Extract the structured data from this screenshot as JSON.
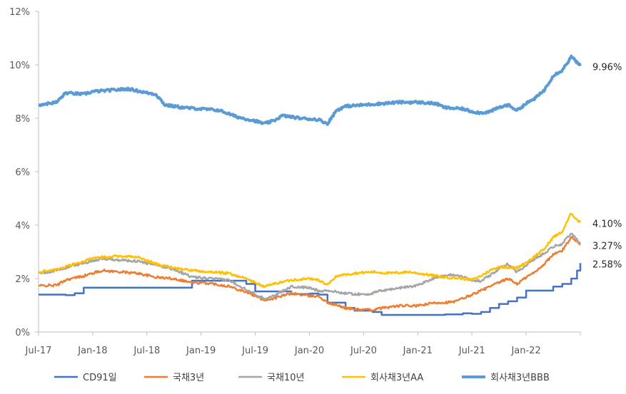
{
  "chart_data": {
    "type": "line",
    "title": "",
    "xlabel": "",
    "ylabel": "",
    "ylim": [
      0,
      12
    ],
    "y_ticks": [
      "0%",
      "2%",
      "4%",
      "6%",
      "8%",
      "10%",
      "12%"
    ],
    "x_ticks": [
      "Jul-17",
      "Jan-18",
      "Jul-18",
      "Jan-19",
      "Jul-19",
      "Jan-20",
      "Jul-20",
      "Jan-21",
      "Jul-21",
      "Jan-22"
    ],
    "x_range": [
      "2017-07",
      "2022-07"
    ],
    "grid": false,
    "legend_position": "bottom",
    "end_labels": [
      {
        "series": "회사채3년BBB",
        "text": "9.96%"
      },
      {
        "series": "회사채3년AA",
        "text": "4.10%"
      },
      {
        "series": "국채3년",
        "text": "3.27%"
      },
      {
        "series": "CD91일",
        "text": "2.58%"
      }
    ],
    "series": [
      {
        "name": "CD91일",
        "color": "#4472C4",
        "width": 2.5,
        "step": true,
        "points": [
          [
            "2017-07",
            1.4
          ],
          [
            "2017-10",
            1.38
          ],
          [
            "2017-11",
            1.45
          ],
          [
            "2017-12",
            1.66
          ],
          [
            "2018-11",
            1.66
          ],
          [
            "2018-12",
            1.92
          ],
          [
            "2019-06",
            1.8
          ],
          [
            "2019-07",
            1.52
          ],
          [
            "2019-10",
            1.52
          ],
          [
            "2019-11",
            1.42
          ],
          [
            "2020-01",
            1.44
          ],
          [
            "2020-02",
            1.4
          ],
          [
            "2020-03",
            1.1
          ],
          [
            "2020-04",
            1.1
          ],
          [
            "2020-05",
            0.9
          ],
          [
            "2020-06",
            0.8
          ],
          [
            "2020-08",
            0.75
          ],
          [
            "2020-09",
            0.64
          ],
          [
            "2021-04",
            0.66
          ],
          [
            "2021-06",
            0.7
          ],
          [
            "2021-07",
            0.68
          ],
          [
            "2021-08",
            0.75
          ],
          [
            "2021-09",
            0.9
          ],
          [
            "2021-10",
            1.05
          ],
          [
            "2021-11",
            1.15
          ],
          [
            "2021-12",
            1.29
          ],
          [
            "2022-01",
            1.55
          ],
          [
            "2022-03",
            1.55
          ],
          [
            "2022-04",
            1.7
          ],
          [
            "2022-05",
            1.8
          ],
          [
            "2022-06",
            2.0
          ],
          [
            "2022-06-20",
            2.3
          ],
          [
            "2022-07",
            2.58
          ]
        ]
      },
      {
        "name": "국채3년",
        "color": "#ED7D31",
        "width": 2.5,
        "points": [
          [
            "2017-07",
            1.73
          ],
          [
            "2017-09",
            1.75
          ],
          [
            "2017-10",
            1.95
          ],
          [
            "2017-12",
            2.1
          ],
          [
            "2018-01",
            2.2
          ],
          [
            "2018-02",
            2.3
          ],
          [
            "2018-04",
            2.25
          ],
          [
            "2018-06",
            2.2
          ],
          [
            "2018-08",
            2.05
          ],
          [
            "2018-10",
            2.0
          ],
          [
            "2018-12",
            1.85
          ],
          [
            "2019-02",
            1.82
          ],
          [
            "2019-04",
            1.72
          ],
          [
            "2019-06",
            1.5
          ],
          [
            "2019-08",
            1.2
          ],
          [
            "2019-09",
            1.25
          ],
          [
            "2019-11",
            1.45
          ],
          [
            "2020-01",
            1.35
          ],
          [
            "2020-02",
            1.35
          ],
          [
            "2020-03",
            1.1
          ],
          [
            "2020-05",
            0.9
          ],
          [
            "2020-06",
            0.85
          ],
          [
            "2020-08",
            0.82
          ],
          [
            "2020-09",
            0.9
          ],
          [
            "2020-11",
            0.98
          ],
          [
            "2021-01",
            0.98
          ],
          [
            "2021-03",
            1.1
          ],
          [
            "2021-05",
            1.12
          ],
          [
            "2021-07",
            1.4
          ],
          [
            "2021-08",
            1.55
          ],
          [
            "2021-10",
            1.85
          ],
          [
            "2021-11",
            2.0
          ],
          [
            "2021-12",
            1.8
          ],
          [
            "2022-01",
            2.05
          ],
          [
            "2022-02",
            2.25
          ],
          [
            "2022-03",
            2.55
          ],
          [
            "2022-04",
            2.9
          ],
          [
            "2022-05",
            3.05
          ],
          [
            "2022-06",
            3.55
          ],
          [
            "2022-06-20",
            3.4
          ],
          [
            "2022-07",
            3.27
          ]
        ]
      },
      {
        "name": "국채10년",
        "color": "#A5A5A5",
        "width": 2.5,
        "points": [
          [
            "2017-07",
            2.2
          ],
          [
            "2017-09",
            2.3
          ],
          [
            "2017-11",
            2.5
          ],
          [
            "2018-01",
            2.65
          ],
          [
            "2018-02",
            2.75
          ],
          [
            "2018-04",
            2.7
          ],
          [
            "2018-06",
            2.65
          ],
          [
            "2018-08",
            2.5
          ],
          [
            "2018-10",
            2.35
          ],
          [
            "2018-12",
            2.05
          ],
          [
            "2019-02",
            2.0
          ],
          [
            "2019-04",
            1.95
          ],
          [
            "2019-06",
            1.6
          ],
          [
            "2019-08",
            1.25
          ],
          [
            "2019-09",
            1.35
          ],
          [
            "2019-11",
            1.7
          ],
          [
            "2020-01",
            1.65
          ],
          [
            "2020-02",
            1.55
          ],
          [
            "2020-03",
            1.55
          ],
          [
            "2020-05",
            1.45
          ],
          [
            "2020-07",
            1.4
          ],
          [
            "2020-08",
            1.45
          ],
          [
            "2020-09",
            1.55
          ],
          [
            "2020-11",
            1.65
          ],
          [
            "2021-01",
            1.75
          ],
          [
            "2021-03",
            2.05
          ],
          [
            "2021-05",
            2.15
          ],
          [
            "2021-07",
            1.95
          ],
          [
            "2021-08",
            1.9
          ],
          [
            "2021-10",
            2.35
          ],
          [
            "2021-11",
            2.55
          ],
          [
            "2021-12",
            2.25
          ],
          [
            "2022-01",
            2.5
          ],
          [
            "2022-02",
            2.75
          ],
          [
            "2022-03",
            2.95
          ],
          [
            "2022-04",
            3.2
          ],
          [
            "2022-05",
            3.3
          ],
          [
            "2022-06",
            3.7
          ],
          [
            "2022-06-20",
            3.45
          ],
          [
            "2022-07",
            3.3
          ]
        ]
      },
      {
        "name": "회사채3년AA",
        "color": "#FFC000",
        "width": 2.5,
        "points": [
          [
            "2017-07",
            2.25
          ],
          [
            "2017-09",
            2.35
          ],
          [
            "2017-11",
            2.55
          ],
          [
            "2018-01",
            2.75
          ],
          [
            "2018-02",
            2.8
          ],
          [
            "2018-04",
            2.85
          ],
          [
            "2018-06",
            2.8
          ],
          [
            "2018-08",
            2.55
          ],
          [
            "2018-10",
            2.4
          ],
          [
            "2018-12",
            2.3
          ],
          [
            "2019-02",
            2.25
          ],
          [
            "2019-04",
            2.2
          ],
          [
            "2019-06",
            2.0
          ],
          [
            "2019-08",
            1.7
          ],
          [
            "2019-09",
            1.8
          ],
          [
            "2019-11",
            1.95
          ],
          [
            "2020-01",
            2.0
          ],
          [
            "2020-02",
            1.95
          ],
          [
            "2020-03",
            1.75
          ],
          [
            "2020-04",
            2.1
          ],
          [
            "2020-06",
            2.2
          ],
          [
            "2020-08",
            2.25
          ],
          [
            "2020-10",
            2.2
          ],
          [
            "2020-12",
            2.25
          ],
          [
            "2021-02",
            2.15
          ],
          [
            "2021-04",
            2.05
          ],
          [
            "2021-06",
            2.0
          ],
          [
            "2021-07",
            1.95
          ],
          [
            "2021-08",
            2.1
          ],
          [
            "2021-09",
            2.3
          ],
          [
            "2021-10",
            2.45
          ],
          [
            "2021-12",
            2.4
          ],
          [
            "2022-01",
            2.6
          ],
          [
            "2022-02",
            2.85
          ],
          [
            "2022-03",
            3.1
          ],
          [
            "2022-04",
            3.55
          ],
          [
            "2022-05",
            3.75
          ],
          [
            "2022-06",
            4.45
          ],
          [
            "2022-06-20",
            4.2
          ],
          [
            "2022-07",
            4.1
          ]
        ]
      },
      {
        "name": "회사채3년BBB",
        "color": "#5B9BD5",
        "width": 4,
        "points": [
          [
            "2017-07",
            8.5
          ],
          [
            "2017-09",
            8.6
          ],
          [
            "2017-10",
            8.95
          ],
          [
            "2017-12",
            8.9
          ],
          [
            "2018-01",
            9.0
          ],
          [
            "2018-03",
            9.05
          ],
          [
            "2018-05",
            9.1
          ],
          [
            "2018-07",
            8.95
          ],
          [
            "2018-08",
            8.9
          ],
          [
            "2018-09",
            8.5
          ],
          [
            "2018-11",
            8.4
          ],
          [
            "2019-01",
            8.35
          ],
          [
            "2019-03",
            8.3
          ],
          [
            "2019-05",
            8.05
          ],
          [
            "2019-07",
            7.9
          ],
          [
            "2019-08",
            7.8
          ],
          [
            "2019-09",
            7.9
          ],
          [
            "2019-10",
            8.1
          ],
          [
            "2019-12",
            8.0
          ],
          [
            "2020-02",
            7.95
          ],
          [
            "2020-03",
            7.8
          ],
          [
            "2020-04",
            8.3
          ],
          [
            "2020-05",
            8.45
          ],
          [
            "2020-07",
            8.5
          ],
          [
            "2020-09",
            8.55
          ],
          [
            "2020-11",
            8.6
          ],
          [
            "2021-01",
            8.6
          ],
          [
            "2021-03",
            8.55
          ],
          [
            "2021-04",
            8.4
          ],
          [
            "2021-06",
            8.35
          ],
          [
            "2021-07",
            8.25
          ],
          [
            "2021-08",
            8.2
          ],
          [
            "2021-09",
            8.25
          ],
          [
            "2021-10",
            8.4
          ],
          [
            "2021-11",
            8.5
          ],
          [
            "2021-12",
            8.3
          ],
          [
            "2022-01",
            8.55
          ],
          [
            "2022-02",
            8.75
          ],
          [
            "2022-03",
            9.05
          ],
          [
            "2022-04",
            9.6
          ],
          [
            "2022-05",
            9.8
          ],
          [
            "2022-06",
            10.3
          ],
          [
            "2022-06-20",
            10.1
          ],
          [
            "2022-07",
            9.96
          ]
        ]
      }
    ]
  }
}
